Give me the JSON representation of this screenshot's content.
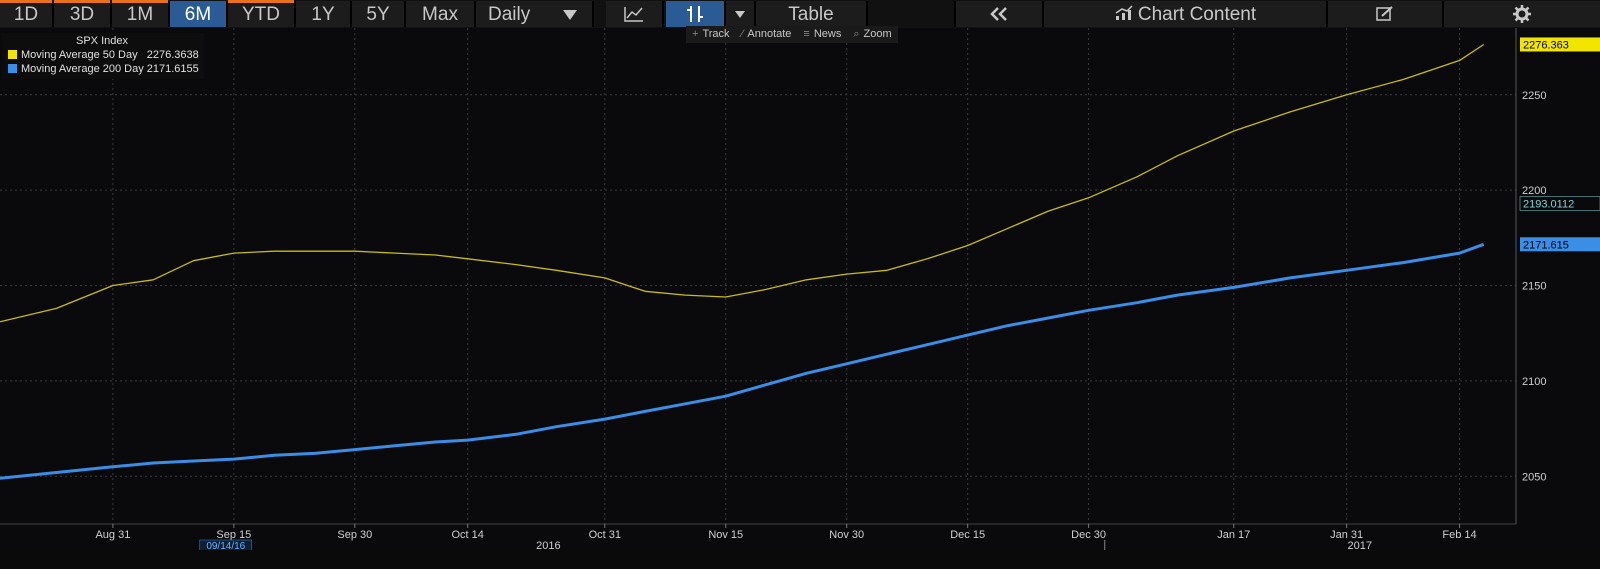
{
  "toolbar": {
    "periods": [
      "1D",
      "3D",
      "1M",
      "6M",
      "YTD",
      "1Y",
      "5Y",
      "Max"
    ],
    "active_period": "6M",
    "frequency": "Daily",
    "table_label": "Table",
    "chart_content_label": "Chart Content",
    "icons": [
      "line-chart-icon",
      "bar-style-icon",
      "dropdown-arrow-icon",
      "collapse-icon",
      "chart-content-icon",
      "edit-icon",
      "gear-icon"
    ]
  },
  "subbar": {
    "items": [
      "Track",
      "Annotate",
      "News",
      "Zoom"
    ]
  },
  "legend": {
    "title": "SPX Index",
    "entries": [
      {
        "label": "Moving Average 50 Day",
        "value": "2276.3638",
        "color": "#f2e600"
      },
      {
        "label": "Moving Average 200 Day",
        "value": "2171.6155",
        "color": "#3a8ee6"
      }
    ]
  },
  "colors": {
    "background": "#0a0a0d",
    "grid": "#3a3a3a",
    "ma50": "#c8bd10",
    "ma200": "#3a8ee6",
    "active_tab": "#2a5b95",
    "accent_orange": "#e8721a"
  },
  "chart_data": {
    "type": "line",
    "title": "SPX Index",
    "x_ticks": [
      "Aug 31",
      "Sep 15",
      "Sep 30",
      "Oct 14",
      "Oct 31",
      "Nov 15",
      "Nov 30",
      "Dec 15",
      "Dec 30",
      "Jan 17",
      "Jan 31",
      "Feb 14"
    ],
    "year_labels": [
      "2016",
      "2017"
    ],
    "date_marker": "09/14/16",
    "ylim": [
      2025,
      2285
    ],
    "y_ticks": [
      2050,
      2100,
      2150,
      2200,
      2250
    ],
    "grid": true,
    "last_value_tags": [
      {
        "label": "2276.363",
        "series": "Moving Average 50 Day",
        "value": 2276.3638
      },
      {
        "label": "2193.0112",
        "value": 2193.0112
      },
      {
        "label": "2171.615",
        "series": "Moving Average 200 Day",
        "value": 2171.6155
      }
    ],
    "series": [
      {
        "name": "Moving Average 50 Day",
        "points": [
          [
            "Aug 17",
            2131
          ],
          [
            "Aug 24",
            2138
          ],
          [
            "Aug 31",
            2150
          ],
          [
            "Sep 5",
            2153
          ],
          [
            "Sep 10",
            2163
          ],
          [
            "Sep 15",
            2167
          ],
          [
            "Sep 20",
            2168
          ],
          [
            "Sep 25",
            2168
          ],
          [
            "Sep 30",
            2168
          ],
          [
            "Oct 5",
            2167
          ],
          [
            "Oct 10",
            2166
          ],
          [
            "Oct 14",
            2164
          ],
          [
            "Oct 20",
            2161
          ],
          [
            "Oct 25",
            2158
          ],
          [
            "Oct 31",
            2154
          ],
          [
            "Nov 5",
            2147
          ],
          [
            "Nov 10",
            2145
          ],
          [
            "Nov 15",
            2144
          ],
          [
            "Nov 20",
            2148
          ],
          [
            "Nov 25",
            2153
          ],
          [
            "Nov 30",
            2156
          ],
          [
            "Dec 5",
            2158
          ],
          [
            "Dec 10",
            2164
          ],
          [
            "Dec 15",
            2171
          ],
          [
            "Dec 20",
            2180
          ],
          [
            "Dec 25",
            2189
          ],
          [
            "Dec 30",
            2196
          ],
          [
            "Jan 5",
            2207
          ],
          [
            "Jan 10",
            2218
          ],
          [
            "Jan 17",
            2231
          ],
          [
            "Jan 24",
            2241
          ],
          [
            "Jan 31",
            2250
          ],
          [
            "Feb 7",
            2258
          ],
          [
            "Feb 14",
            2268
          ],
          [
            "Feb 17",
            2276.3638
          ]
        ]
      },
      {
        "name": "Moving Average 200 Day",
        "points": [
          [
            "Aug 17",
            2049
          ],
          [
            "Aug 24",
            2052
          ],
          [
            "Aug 31",
            2055
          ],
          [
            "Sep 5",
            2057
          ],
          [
            "Sep 10",
            2058
          ],
          [
            "Sep 15",
            2059
          ],
          [
            "Sep 20",
            2061
          ],
          [
            "Sep 25",
            2062
          ],
          [
            "Sep 30",
            2064
          ],
          [
            "Oct 5",
            2066
          ],
          [
            "Oct 10",
            2068
          ],
          [
            "Oct 14",
            2069
          ],
          [
            "Oct 20",
            2072
          ],
          [
            "Oct 25",
            2076
          ],
          [
            "Oct 31",
            2080
          ],
          [
            "Nov 5",
            2084
          ],
          [
            "Nov 10",
            2088
          ],
          [
            "Nov 15",
            2092
          ],
          [
            "Nov 20",
            2098
          ],
          [
            "Nov 25",
            2104
          ],
          [
            "Nov 30",
            2109
          ],
          [
            "Dec 5",
            2114
          ],
          [
            "Dec 10",
            2119
          ],
          [
            "Dec 15",
            2124
          ],
          [
            "Dec 20",
            2129
          ],
          [
            "Dec 25",
            2133
          ],
          [
            "Dec 30",
            2137
          ],
          [
            "Jan 5",
            2141
          ],
          [
            "Jan 10",
            2145
          ],
          [
            "Jan 17",
            2149
          ],
          [
            "Jan 24",
            2154
          ],
          [
            "Jan 31",
            2158
          ],
          [
            "Feb 7",
            2162
          ],
          [
            "Feb 14",
            2167
          ],
          [
            "Feb 17",
            2171.6155
          ]
        ]
      }
    ]
  }
}
